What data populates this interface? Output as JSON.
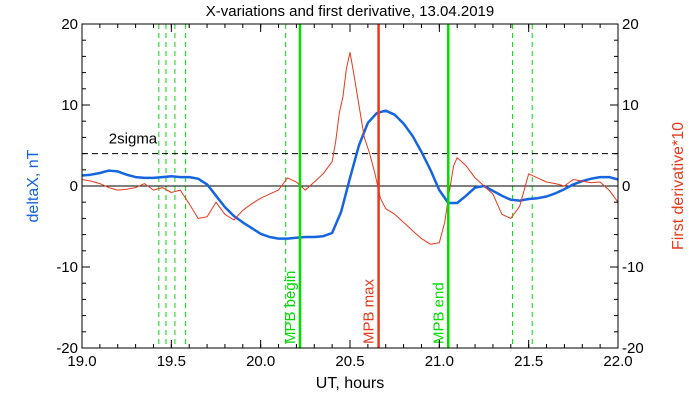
{
  "chart_data": {
    "type": "line",
    "title": "X-variations and first derivative, 13.04.2019",
    "xlabel": "UT, hours",
    "ylabel_left": "deltaX, nT",
    "ylabel_right": "First derivative*10",
    "xlim": [
      19.0,
      22.0
    ],
    "ylim": [
      -20,
      20
    ],
    "y2lim": [
      -20,
      20
    ],
    "x_ticks": [
      19.0,
      19.5,
      20.0,
      20.5,
      21.0,
      21.5,
      22.0
    ],
    "x_tick_labels": [
      "19.0",
      "19.5",
      "20.0",
      "20.5",
      "21.0",
      "21.5",
      "22.0"
    ],
    "y_ticks": [
      20,
      10,
      0,
      -10,
      -20
    ],
    "y_tick_labels": [
      "20",
      "10",
      "0",
      "-10",
      "-20"
    ],
    "y2_tick_labels": [
      "20",
      "10",
      "0",
      "-10",
      "-20"
    ],
    "threshold": {
      "label": "2sigma",
      "value": 4.0,
      "label_x": 19.15
    },
    "vertical_lines": [
      {
        "x": 20.22,
        "label": "MPB begin",
        "color": "#00dd00"
      },
      {
        "x": 20.66,
        "label": "MPB max",
        "color": "#e8391d"
      },
      {
        "x": 21.05,
        "label": "MPB end",
        "color": "#00dd00"
      }
    ],
    "dashed_verticals": [
      19.43,
      19.47,
      19.52,
      19.58,
      20.14,
      21.41,
      21.52
    ],
    "series": [
      {
        "axis": "left",
        "color": "#1565e0",
        "x": [
          19.0,
          19.05,
          19.1,
          19.15,
          19.2,
          19.25,
          19.3,
          19.35,
          19.4,
          19.45,
          19.5,
          19.55,
          19.6,
          19.65,
          19.7,
          19.75,
          19.8,
          19.85,
          19.9,
          19.95,
          20.0,
          20.05,
          20.1,
          20.15,
          20.2,
          20.25,
          20.3,
          20.35,
          20.4,
          20.45,
          20.5,
          20.55,
          20.6,
          20.65,
          20.7,
          20.75,
          20.8,
          20.85,
          20.9,
          20.95,
          21.0,
          21.05,
          21.1,
          21.15,
          21.2,
          21.25,
          21.3,
          21.35,
          21.4,
          21.45,
          21.5,
          21.55,
          21.6,
          21.65,
          21.7,
          21.75,
          21.8,
          21.85,
          21.9,
          21.95,
          22.0
        ],
        "values": [
          1.3,
          1.4,
          1.6,
          1.9,
          1.8,
          1.4,
          1.1,
          1.0,
          1.0,
          1.1,
          1.2,
          1.1,
          1.1,
          0.9,
          0.2,
          -1.2,
          -2.6,
          -3.7,
          -4.5,
          -5.2,
          -5.9,
          -6.3,
          -6.5,
          -6.5,
          -6.4,
          -6.3,
          -6.3,
          -6.2,
          -5.8,
          -3.2,
          1.0,
          5.0,
          7.8,
          9.0,
          9.3,
          8.8,
          7.7,
          6.2,
          4.2,
          2.0,
          -0.5,
          -2.1,
          -2.1,
          -1.2,
          -0.2,
          0.0,
          -0.6,
          -1.2,
          -1.7,
          -1.8,
          -1.6,
          -1.5,
          -1.3,
          -0.9,
          -0.4,
          0.2,
          0.6,
          0.9,
          1.1,
          1.1,
          0.8
        ]
      },
      {
        "axis": "right",
        "color": "#e8391d",
        "x": [
          19.0,
          19.05,
          19.1,
          19.15,
          19.2,
          19.25,
          19.3,
          19.35,
          19.4,
          19.45,
          19.5,
          19.55,
          19.6,
          19.65,
          19.7,
          19.75,
          19.8,
          19.85,
          19.9,
          19.95,
          20.0,
          20.05,
          20.1,
          20.15,
          20.2,
          20.25,
          20.3,
          20.35,
          20.4,
          20.42,
          20.44,
          20.46,
          20.48,
          20.5,
          20.52,
          20.55,
          20.58,
          20.61,
          20.64,
          20.67,
          20.7,
          20.75,
          20.8,
          20.85,
          20.9,
          20.95,
          21.0,
          21.03,
          21.05,
          21.08,
          21.1,
          21.15,
          21.2,
          21.25,
          21.3,
          21.35,
          21.4,
          21.45,
          21.5,
          21.55,
          21.6,
          21.65,
          21.7,
          21.75,
          21.8,
          21.85,
          21.9,
          21.95,
          22.0
        ],
        "values": [
          0.8,
          0.6,
          0.3,
          -0.2,
          -0.5,
          -0.4,
          -0.2,
          0.3,
          -0.5,
          -0.2,
          -0.8,
          -0.5,
          -2.2,
          -4.0,
          -3.8,
          -2.0,
          -3.5,
          -4.2,
          -3.0,
          -2.2,
          -1.5,
          -1.0,
          -0.5,
          1.0,
          0.5,
          -0.5,
          0.5,
          1.5,
          3.0,
          5.5,
          9.0,
          11.0,
          14.5,
          16.5,
          14.0,
          10.0,
          6.0,
          4.0,
          1.5,
          -1.5,
          -2.8,
          -3.5,
          -4.5,
          -5.5,
          -6.5,
          -7.2,
          -7.0,
          -4.5,
          -1.5,
          2.5,
          3.5,
          2.5,
          1.0,
          0.0,
          -1.0,
          -3.5,
          -4.0,
          -2.5,
          1.5,
          1.0,
          0.5,
          0.3,
          0.0,
          0.8,
          0.6,
          0.4,
          0.5,
          -0.5,
          -2.0
        ]
      }
    ]
  }
}
